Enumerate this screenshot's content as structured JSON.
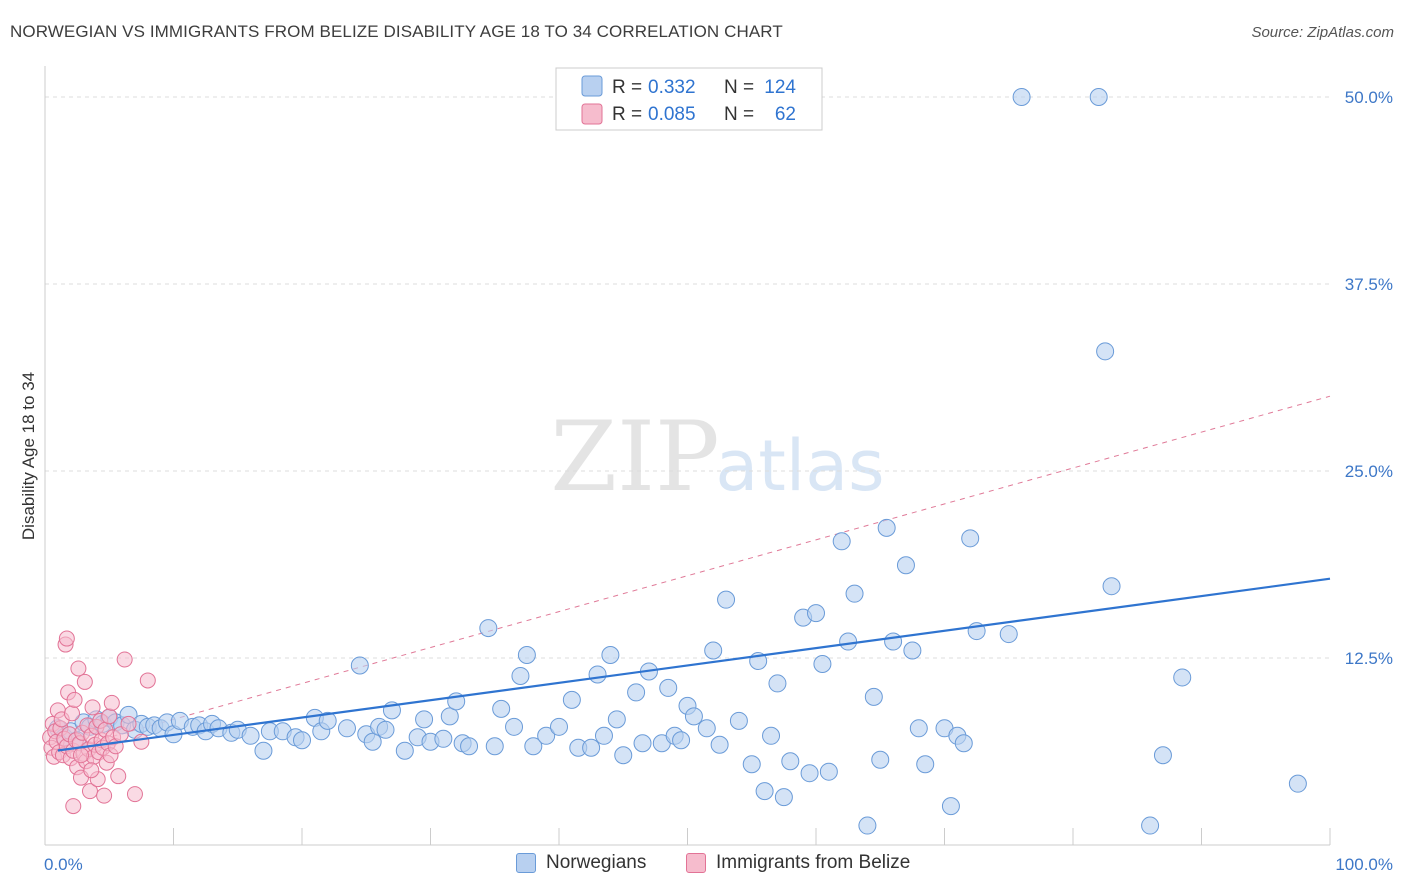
{
  "title": "NORWEGIAN VS IMMIGRANTS FROM BELIZE DISABILITY AGE 18 TO 34 CORRELATION CHART",
  "source": "Source: ZipAtlas.com",
  "watermark": {
    "zip": "ZIP",
    "atlas": "atlas"
  },
  "colors": {
    "blue_fill": "#b8d0f0",
    "blue_stroke": "#6a9bd8",
    "blue_line": "#2f74d0",
    "pink_fill": "#f6bccd",
    "pink_stroke": "#e27396",
    "pink_line": "#e07a98",
    "tick_label": "#3d77c7",
    "grid": "#dddddd"
  },
  "stats_legend": [
    {
      "r_label": "R =",
      "r_value": "0.332",
      "n_label": "N =",
      "n_value": "124"
    },
    {
      "r_label": "R =",
      "r_value": "0.085",
      "n_label": "N =",
      "n_value": "62"
    }
  ],
  "chart_data": {
    "type": "scatter",
    "title": "NORWEGIAN VS IMMIGRANTS FROM BELIZE DISABILITY AGE 18 TO 34 CORRELATION CHART",
    "xlabel": "",
    "ylabel": "Disability Age 18 to 34",
    "xlim": [
      0,
      100
    ],
    "ylim": [
      0,
      50
    ],
    "x_tick_labels": [
      "0.0%",
      "100.0%"
    ],
    "y_ticks": [
      12.5,
      25.0,
      37.5,
      50.0
    ],
    "y_tick_labels": [
      "12.5%",
      "25.0%",
      "37.5%",
      "50.0%"
    ],
    "grid": true,
    "legend_placement": "bottom-center",
    "series": [
      {
        "name": "Norwegians",
        "r": 0.332,
        "n": 124,
        "trend": {
          "x": [
            0,
            100
          ],
          "y": [
            6.2,
            17.8
          ]
        },
        "points": [
          [
            1.0,
            7.8
          ],
          [
            1.5,
            7.2
          ],
          [
            2.0,
            7.6
          ],
          [
            2.5,
            7.0
          ],
          [
            3.0,
            8.2
          ],
          [
            3.5,
            7.9
          ],
          [
            4.0,
            8.4
          ],
          [
            4.5,
            8.1
          ],
          [
            5.0,
            8.5
          ],
          [
            5.5,
            8.2
          ],
          [
            6.0,
            8.0
          ],
          [
            6.5,
            8.7
          ],
          [
            7.0,
            7.7
          ],
          [
            7.5,
            8.1
          ],
          [
            8.0,
            7.9
          ],
          [
            8.5,
            8.0
          ],
          [
            9.0,
            7.8
          ],
          [
            9.5,
            8.2
          ],
          [
            10.0,
            7.4
          ],
          [
            10.5,
            8.3
          ],
          [
            11.5,
            7.9
          ],
          [
            12.0,
            8.0
          ],
          [
            12.5,
            7.6
          ],
          [
            13.0,
            8.1
          ],
          [
            13.5,
            7.8
          ],
          [
            14.5,
            7.5
          ],
          [
            15.0,
            7.7
          ],
          [
            16.0,
            7.3
          ],
          [
            17.0,
            6.3
          ],
          [
            17.5,
            7.6
          ],
          [
            18.5,
            7.6
          ],
          [
            19.5,
            7.2
          ],
          [
            20.0,
            7.0
          ],
          [
            21.0,
            8.5
          ],
          [
            21.5,
            7.6
          ],
          [
            22.0,
            8.3
          ],
          [
            23.5,
            7.8
          ],
          [
            24.5,
            12.0
          ],
          [
            25.0,
            7.4
          ],
          [
            25.5,
            6.9
          ],
          [
            26.0,
            7.9
          ],
          [
            26.5,
            7.7
          ],
          [
            27.0,
            9.0
          ],
          [
            28.0,
            6.3
          ],
          [
            29.0,
            7.2
          ],
          [
            29.5,
            8.4
          ],
          [
            30.0,
            6.9
          ],
          [
            31.0,
            7.1
          ],
          [
            31.5,
            8.6
          ],
          [
            32.0,
            9.6
          ],
          [
            32.5,
            6.8
          ],
          [
            33.0,
            6.6
          ],
          [
            34.5,
            14.5
          ],
          [
            35.0,
            6.6
          ],
          [
            35.5,
            9.1
          ],
          [
            36.5,
            7.9
          ],
          [
            37.0,
            11.3
          ],
          [
            37.5,
            12.7
          ],
          [
            38.0,
            6.6
          ],
          [
            39.0,
            7.3
          ],
          [
            40.0,
            7.9
          ],
          [
            41.0,
            9.7
          ],
          [
            41.5,
            6.5
          ],
          [
            42.5,
            6.5
          ],
          [
            43.0,
            11.4
          ],
          [
            43.5,
            7.3
          ],
          [
            44.0,
            12.7
          ],
          [
            44.5,
            8.4
          ],
          [
            45.0,
            6.0
          ],
          [
            46.0,
            10.2
          ],
          [
            46.5,
            6.8
          ],
          [
            47.0,
            11.6
          ],
          [
            48.0,
            6.8
          ],
          [
            48.5,
            10.5
          ],
          [
            49.0,
            7.3
          ],
          [
            49.5,
            7.0
          ],
          [
            50.0,
            9.3
          ],
          [
            50.5,
            8.6
          ],
          [
            51.5,
            7.8
          ],
          [
            52.0,
            13.0
          ],
          [
            52.5,
            6.7
          ],
          [
            53.0,
            16.4
          ],
          [
            54.0,
            8.3
          ],
          [
            55.0,
            5.4
          ],
          [
            55.5,
            12.3
          ],
          [
            56.0,
            3.6
          ],
          [
            56.5,
            7.3
          ],
          [
            57.0,
            10.8
          ],
          [
            57.5,
            3.2
          ],
          [
            58.0,
            5.6
          ],
          [
            59.0,
            15.2
          ],
          [
            59.5,
            4.8
          ],
          [
            60.0,
            15.5
          ],
          [
            60.5,
            12.1
          ],
          [
            61.0,
            4.9
          ],
          [
            62.0,
            20.3
          ],
          [
            62.5,
            13.6
          ],
          [
            63.0,
            16.8
          ],
          [
            64.0,
            1.3
          ],
          [
            64.5,
            9.9
          ],
          [
            65.0,
            5.7
          ],
          [
            65.5,
            21.2
          ],
          [
            66.0,
            13.6
          ],
          [
            67.0,
            18.7
          ],
          [
            67.5,
            13.0
          ],
          [
            68.0,
            7.8
          ],
          [
            68.5,
            5.4
          ],
          [
            70.0,
            7.8
          ],
          [
            70.5,
            2.6
          ],
          [
            71.0,
            7.3
          ],
          [
            71.5,
            6.8
          ],
          [
            72.0,
            20.5
          ],
          [
            72.5,
            14.3
          ],
          [
            75.0,
            14.1
          ],
          [
            76.0,
            50.0
          ],
          [
            82.0,
            50.0
          ],
          [
            82.5,
            33.0
          ],
          [
            83.0,
            17.3
          ],
          [
            86.0,
            1.3
          ],
          [
            87.0,
            6.0
          ],
          [
            88.5,
            11.2
          ],
          [
            97.5,
            4.1
          ]
        ]
      },
      {
        "name": "Immigrants from Belize",
        "r": 0.085,
        "n": 62,
        "trend": {
          "x": [
            0,
            100
          ],
          "y": [
            6.0,
            30.0
          ]
        },
        "points": [
          [
            0.4,
            7.2
          ],
          [
            0.5,
            6.5
          ],
          [
            0.6,
            8.1
          ],
          [
            0.7,
            5.9
          ],
          [
            0.8,
            7.6
          ],
          [
            0.9,
            6.9
          ],
          [
            1.0,
            9.0
          ],
          [
            1.1,
            6.2
          ],
          [
            1.2,
            7.8
          ],
          [
            1.3,
            8.4
          ],
          [
            1.4,
            6.0
          ],
          [
            1.5,
            7.1
          ],
          [
            1.6,
            13.4
          ],
          [
            1.7,
            6.6
          ],
          [
            1.8,
            10.2
          ],
          [
            1.9,
            7.4
          ],
          [
            2.0,
            5.8
          ],
          [
            2.1,
            8.8
          ],
          [
            2.2,
            6.3
          ],
          [
            2.3,
            9.7
          ],
          [
            2.4,
            7.0
          ],
          [
            2.5,
            5.2
          ],
          [
            2.6,
            11.8
          ],
          [
            2.7,
            6.8
          ],
          [
            2.8,
            4.5
          ],
          [
            2.9,
            7.5
          ],
          [
            3.0,
            6.1
          ],
          [
            3.1,
            10.9
          ],
          [
            3.2,
            5.6
          ],
          [
            3.3,
            8.0
          ],
          [
            3.4,
            6.4
          ],
          [
            3.5,
            3.6
          ],
          [
            3.6,
            7.3
          ],
          [
            3.7,
            9.2
          ],
          [
            3.8,
            5.9
          ],
          [
            3.9,
            6.7
          ],
          [
            4.0,
            7.9
          ],
          [
            4.1,
            4.4
          ],
          [
            4.2,
            6.2
          ],
          [
            4.3,
            8.3
          ],
          [
            4.4,
            7.0
          ],
          [
            4.5,
            6.5
          ],
          [
            4.6,
            3.3
          ],
          [
            4.7,
            7.7
          ],
          [
            4.8,
            5.5
          ],
          [
            4.9,
            6.8
          ],
          [
            5.0,
            8.6
          ],
          [
            5.1,
            6.0
          ],
          [
            5.2,
            9.5
          ],
          [
            5.3,
            7.2
          ],
          [
            5.5,
            6.6
          ],
          [
            5.7,
            4.6
          ],
          [
            5.9,
            7.4
          ],
          [
            6.2,
            12.4
          ],
          [
            6.5,
            8.1
          ],
          [
            7.0,
            3.4
          ],
          [
            7.5,
            6.9
          ],
          [
            8.0,
            11.0
          ],
          [
            1.7,
            13.8
          ],
          [
            2.2,
            2.6
          ],
          [
            2.8,
            6.0
          ],
          [
            3.6,
            5.0
          ]
        ]
      }
    ]
  }
}
